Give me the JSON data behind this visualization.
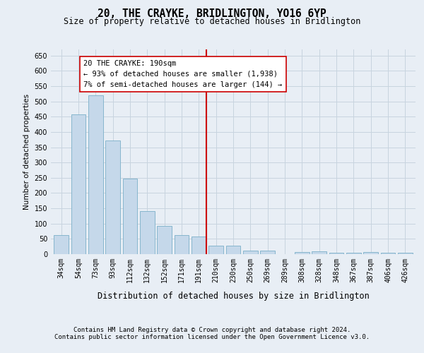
{
  "title": "20, THE CRAYKE, BRIDLINGTON, YO16 6YP",
  "subtitle": "Size of property relative to detached houses in Bridlington",
  "xlabel": "Distribution of detached houses by size in Bridlington",
  "ylabel": "Number of detached properties",
  "categories": [
    "34sqm",
    "54sqm",
    "73sqm",
    "93sqm",
    "112sqm",
    "132sqm",
    "152sqm",
    "171sqm",
    "191sqm",
    "210sqm",
    "230sqm",
    "250sqm",
    "269sqm",
    "289sqm",
    "308sqm",
    "328sqm",
    "348sqm",
    "367sqm",
    "387sqm",
    "406sqm",
    "426sqm"
  ],
  "values": [
    63,
    457,
    519,
    372,
    248,
    140,
    93,
    63,
    57,
    27,
    27,
    11,
    12,
    0,
    8,
    9,
    5,
    5,
    7,
    4,
    4
  ],
  "bar_color": "#c5d8ea",
  "bar_edge_color": "#7aafc8",
  "grid_color": "#c8d4df",
  "background_color": "#e8eef5",
  "vline_color": "#cc0000",
  "annotation_text": "20 THE CRAYKE: 190sqm\n← 93% of detached houses are smaller (1,938)\n7% of semi-detached houses are larger (144) →",
  "annotation_box_color": "#ffffff",
  "annotation_box_edge_color": "#cc0000",
  "ylim": [
    0,
    670
  ],
  "yticks": [
    0,
    50,
    100,
    150,
    200,
    250,
    300,
    350,
    400,
    450,
    500,
    550,
    600,
    650
  ],
  "footer_line1": "Contains HM Land Registry data © Crown copyright and database right 2024.",
  "footer_line2": "Contains public sector information licensed under the Open Government Licence v3.0.",
  "title_fontsize": 10.5,
  "subtitle_fontsize": 8.5,
  "xlabel_fontsize": 8.5,
  "ylabel_fontsize": 7.5,
  "tick_fontsize": 7,
  "annotation_fontsize": 7.5,
  "footer_fontsize": 6.5
}
